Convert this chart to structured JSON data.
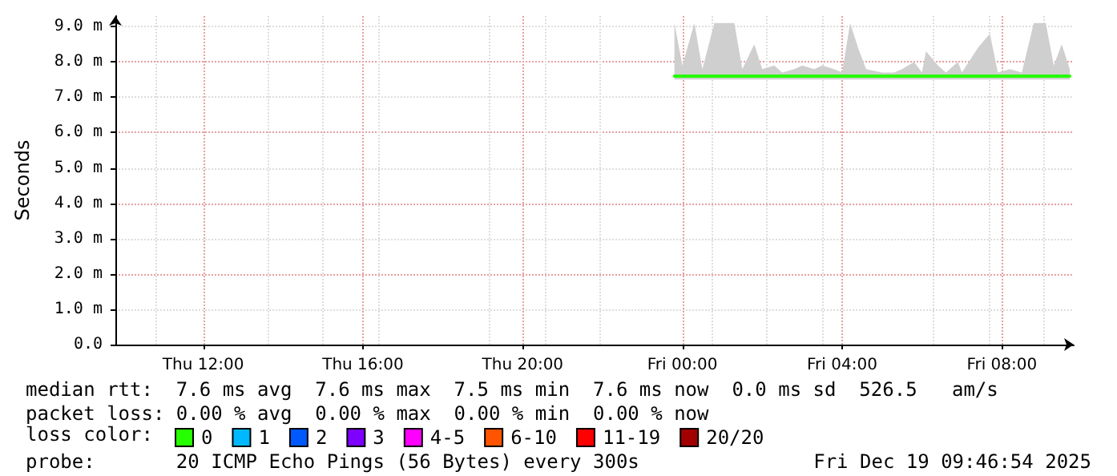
{
  "chart_data": {
    "type": "line",
    "ylabel": "Seconds",
    "legend_title": "loss color:",
    "legend": "bottom",
    "grid": true,
    "marker": "none",
    "line_style": "solid",
    "xlim": [
      "2025-12-18T09:48",
      "2025-12-19T09:48"
    ],
    "xticks": [
      {
        "value": "2025-12-18T12:00",
        "label": "Thu 12:00"
      },
      {
        "value": "2025-12-18T16:00",
        "label": "Thu 16:00"
      },
      {
        "value": "2025-12-18T20:00",
        "label": "Thu 20:00"
      },
      {
        "value": "2025-12-19T00:00",
        "label": "Fri 00:00"
      },
      {
        "value": "2025-12-19T04:00",
        "label": "Fri 04:00"
      },
      {
        "value": "2025-12-19T08:00",
        "label": "Fri 08:00"
      }
    ],
    "ylim": [
      0,
      9.3
    ],
    "yticks": [
      {
        "value": 0,
        "label": "0.0"
      },
      {
        "value": 1,
        "label": "1.0 m"
      },
      {
        "value": 2,
        "label": "2.0 m"
      },
      {
        "value": 3,
        "label": "3.0 m"
      },
      {
        "value": 4,
        "label": "4.0 m"
      },
      {
        "value": 5,
        "label": "5.0 m"
      },
      {
        "value": 6,
        "label": "6.0 m"
      },
      {
        "value": 7,
        "label": "7.0 m"
      },
      {
        "value": 8,
        "label": "8.0 m"
      },
      {
        "value": 9,
        "label": "9.0 m"
      }
    ],
    "x": [
      "2025-12-18T23:48",
      "2025-12-19T00:00",
      "2025-12-19T00:18",
      "2025-12-19T00:30",
      "2025-12-19T00:48",
      "2025-12-19T01:00",
      "2025-12-19T01:18",
      "2025-12-19T01:30",
      "2025-12-19T01:48",
      "2025-12-19T02:00",
      "2025-12-19T02:18",
      "2025-12-19T02:30",
      "2025-12-19T02:48",
      "2025-12-19T03:00",
      "2025-12-19T03:18",
      "2025-12-19T03:30",
      "2025-12-19T03:48",
      "2025-12-19T04:00",
      "2025-12-19T04:12",
      "2025-12-19T04:24",
      "2025-12-19T04:36",
      "2025-12-19T05:00",
      "2025-12-19T05:18",
      "2025-12-19T05:30",
      "2025-12-19T05:48",
      "2025-12-19T06:00",
      "2025-12-19T06:06",
      "2025-12-19T06:24",
      "2025-12-19T06:36",
      "2025-12-19T06:54",
      "2025-12-19T07:00",
      "2025-12-19T07:24",
      "2025-12-19T07:42",
      "2025-12-19T07:54",
      "2025-12-19T08:12",
      "2025-12-19T08:30",
      "2025-12-19T08:48",
      "2025-12-19T09:06",
      "2025-12-19T09:18",
      "2025-12-19T09:30",
      "2025-12-19T09:42"
    ],
    "series": [
      {
        "name": "0",
        "color": "#26ff00",
        "values": [
          7.6,
          7.6,
          7.6,
          7.6,
          7.6,
          7.6,
          7.6,
          7.6,
          7.6,
          7.6,
          7.6,
          7.6,
          7.6,
          7.6,
          7.6,
          7.6,
          7.6,
          7.6,
          7.6,
          7.6,
          7.6,
          7.6,
          7.6,
          7.6,
          7.6,
          7.6,
          7.6,
          7.6,
          7.6,
          7.6,
          7.6,
          7.6,
          7.6,
          7.6,
          7.6,
          7.6,
          7.6,
          7.6,
          7.6,
          7.6,
          7.6
        ],
        "lower": [
          7.5,
          7.5,
          7.5,
          7.5,
          7.5,
          7.5,
          7.5,
          7.5,
          7.5,
          7.5,
          7.5,
          7.5,
          7.5,
          7.5,
          7.5,
          7.5,
          7.5,
          7.5,
          7.5,
          7.5,
          7.5,
          7.5,
          7.5,
          7.5,
          7.5,
          7.5,
          7.5,
          7.5,
          7.5,
          7.5,
          7.5,
          7.5,
          7.5,
          7.5,
          7.5,
          7.5,
          7.5,
          7.5,
          7.5,
          7.5,
          7.5
        ],
        "upper": [
          9.1,
          7.9,
          9.1,
          7.8,
          9.1,
          9.1,
          9.1,
          7.8,
          8.5,
          7.8,
          7.9,
          7.7,
          7.8,
          7.9,
          7.8,
          7.9,
          7.8,
          7.7,
          9.1,
          8.4,
          7.8,
          7.7,
          7.7,
          7.8,
          8.0,
          7.7,
          8.3,
          7.9,
          7.7,
          8.0,
          7.7,
          8.4,
          8.8,
          7.7,
          7.8,
          7.7,
          9.1,
          9.1,
          7.9,
          8.5,
          7.8
        ]
      },
      {
        "name": "1",
        "color": "#00b8ff",
        "values": [
          null,
          null,
          null,
          null,
          null,
          null,
          null,
          null,
          null,
          null,
          null,
          null,
          null,
          null,
          null,
          null,
          null,
          null,
          null,
          null,
          null,
          null,
          null,
          null,
          null,
          null,
          null,
          null,
          null,
          null,
          null,
          null,
          null,
          null,
          null,
          null,
          null,
          null,
          null,
          null,
          null
        ]
      },
      {
        "name": "2",
        "color": "#0059ff",
        "values": [
          null,
          null,
          null,
          null,
          null,
          null,
          null,
          null,
          null,
          null,
          null,
          null,
          null,
          null,
          null,
          null,
          null,
          null,
          null,
          null,
          null,
          null,
          null,
          null,
          null,
          null,
          null,
          null,
          null,
          null,
          null,
          null,
          null,
          null,
          null,
          null,
          null,
          null,
          null,
          null,
          null
        ]
      },
      {
        "name": "3",
        "color": "#7e00ff",
        "values": [
          null,
          null,
          null,
          null,
          null,
          null,
          null,
          null,
          null,
          null,
          null,
          null,
          null,
          null,
          null,
          null,
          null,
          null,
          null,
          null,
          null,
          null,
          null,
          null,
          null,
          null,
          null,
          null,
          null,
          null,
          null,
          null,
          null,
          null,
          null,
          null,
          null,
          null,
          null,
          null,
          null
        ]
      },
      {
        "name": "4-5",
        "color": "#ff00ff",
        "values": [
          null,
          null,
          null,
          null,
          null,
          null,
          null,
          null,
          null,
          null,
          null,
          null,
          null,
          null,
          null,
          null,
          null,
          null,
          null,
          null,
          null,
          null,
          null,
          null,
          null,
          null,
          null,
          null,
          null,
          null,
          null,
          null,
          null,
          null,
          null,
          null,
          null,
          null,
          null,
          null,
          null
        ]
      },
      {
        "name": "6-10",
        "color": "#ff5500",
        "values": [
          null,
          null,
          null,
          null,
          null,
          null,
          null,
          null,
          null,
          null,
          null,
          null,
          null,
          null,
          null,
          null,
          null,
          null,
          null,
          null,
          null,
          null,
          null,
          null,
          null,
          null,
          null,
          null,
          null,
          null,
          null,
          null,
          null,
          null,
          null,
          null,
          null,
          null,
          null,
          null,
          null
        ]
      },
      {
        "name": "11-19",
        "color": "#ff0000",
        "values": [
          null,
          null,
          null,
          null,
          null,
          null,
          null,
          null,
          null,
          null,
          null,
          null,
          null,
          null,
          null,
          null,
          null,
          null,
          null,
          null,
          null,
          null,
          null,
          null,
          null,
          null,
          null,
          null,
          null,
          null,
          null,
          null,
          null,
          null,
          null,
          null,
          null,
          null,
          null,
          null,
          null
        ]
      },
      {
        "name": "20/20",
        "color": "#a10000",
        "values": [
          null,
          null,
          null,
          null,
          null,
          null,
          null,
          null,
          null,
          null,
          null,
          null,
          null,
          null,
          null,
          null,
          null,
          null,
          null,
          null,
          null,
          null,
          null,
          null,
          null,
          null,
          null,
          null,
          null,
          null,
          null,
          null,
          null,
          null,
          null,
          null,
          null,
          null,
          null,
          null,
          null
        ]
      }
    ],
    "annotations": [
      "median rtt:  7.6 ms avg  7.6 ms max  7.5 ms min  7.6 ms now  0.0 ms sd  526.5   am/s",
      "packet loss: 0.00 % avg  0.00 % max  0.00 % min  0.00 % now",
      "probe:       20 ICMP Echo Pings (56 Bytes) every 300s",
      "Fri Dec 19 09:46:54 2025"
    ]
  }
}
